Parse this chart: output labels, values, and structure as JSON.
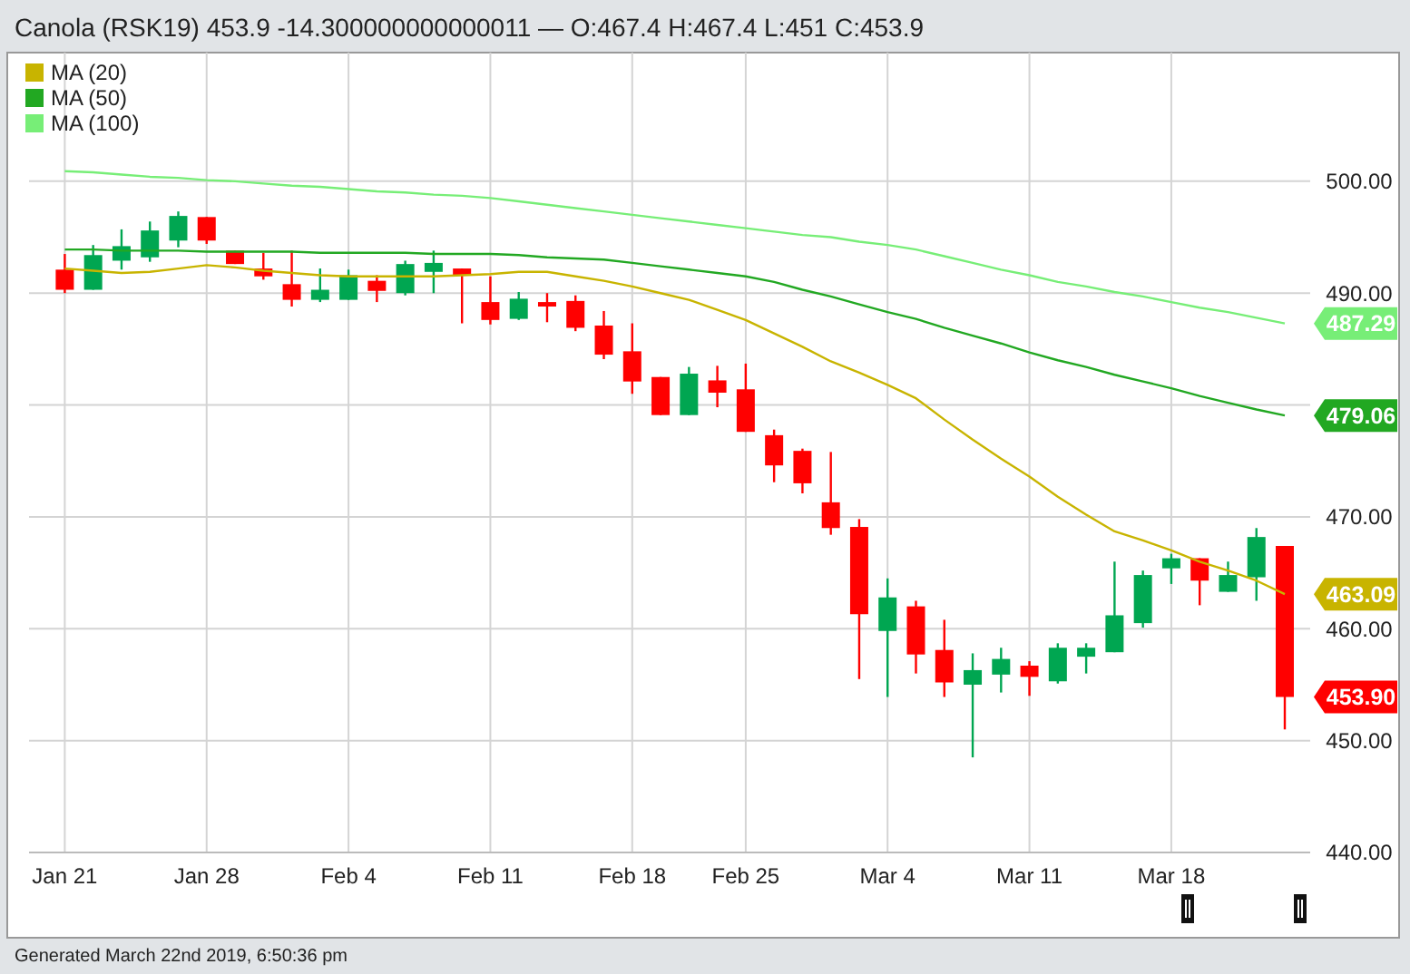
{
  "chart_data": {
    "type": "candlestick",
    "title": "Canola (RSK19) 453.9 -14.300000000000011 — O:467.4 H:467.4 L:451 C:453.9",
    "annotations": [
      "Generated March 22nd 2019, 6:50:36 pm"
    ],
    "categories": [
      "Jan 21",
      null,
      null,
      null,
      null,
      "Jan 28",
      null,
      null,
      null,
      null,
      "Feb 4",
      null,
      null,
      null,
      null,
      "Feb 11",
      null,
      null,
      null,
      null,
      "Feb 18",
      null,
      null,
      null,
      "Feb 25",
      null,
      null,
      null,
      null,
      "Mar 4",
      null,
      null,
      null,
      null,
      "Mar 11",
      null,
      null,
      null,
      null,
      "Mar 18",
      null,
      null,
      null,
      null
    ],
    "ylim": [
      440,
      511.5
    ],
    "yticks": [
      {
        "value": 440,
        "label": "440.00"
      },
      {
        "value": 450,
        "label": "450.00"
      },
      {
        "value": 460,
        "label": "460.00"
      },
      {
        "value": 470,
        "label": "470.00"
      },
      {
        "value": 480,
        "label": null
      },
      {
        "value": 490,
        "label": "490.00"
      },
      {
        "value": 500,
        "label": "500.00"
      }
    ],
    "grid": true,
    "legend": "top left",
    "series": [
      {
        "ohlc": [
          [
            492.1,
            493.5,
            490.0,
            490.3
          ],
          [
            490.3,
            494.3,
            490.3,
            493.4
          ],
          [
            492.9,
            495.7,
            492.1,
            494.2
          ],
          [
            493.2,
            496.4,
            492.8,
            495.6
          ],
          [
            494.7,
            497.3,
            494.1,
            496.9
          ],
          [
            496.8,
            496.8,
            494.4,
            494.7
          ],
          [
            493.8,
            493.8,
            492.6,
            492.6
          ],
          [
            492.2,
            493.6,
            491.2,
            491.5
          ],
          [
            490.8,
            493.8,
            488.8,
            489.4
          ],
          [
            489.4,
            492.2,
            489.2,
            490.3
          ],
          [
            489.4,
            492.1,
            489.4,
            491.6
          ],
          [
            491.1,
            491.6,
            489.2,
            490.2
          ],
          [
            490.0,
            492.9,
            489.8,
            492.6
          ],
          [
            491.9,
            493.8,
            490.0,
            492.7
          ],
          [
            492.2,
            492.2,
            487.3,
            491.6
          ],
          [
            489.2,
            491.5,
            487.2,
            487.6
          ],
          [
            487.7,
            490.1,
            487.6,
            489.5
          ],
          [
            489.2,
            490.0,
            487.4,
            488.8
          ],
          [
            489.3,
            489.8,
            486.6,
            486.9
          ],
          [
            487.1,
            488.4,
            484.1,
            484.5
          ],
          [
            484.8,
            487.3,
            481.0,
            482.1
          ],
          [
            482.5,
            482.5,
            479.1,
            479.1
          ],
          [
            479.1,
            483.4,
            479.1,
            482.8
          ],
          [
            482.2,
            483.5,
            479.8,
            481.1
          ],
          [
            481.4,
            483.7,
            477.6,
            477.6
          ],
          [
            477.3,
            477.8,
            473.1,
            474.6
          ],
          [
            475.9,
            476.1,
            472.1,
            473.0
          ],
          [
            471.3,
            475.8,
            468.4,
            469.0
          ],
          [
            469.1,
            469.8,
            455.5,
            461.3
          ],
          [
            459.8,
            464.5,
            453.9,
            462.8
          ],
          [
            462.0,
            462.5,
            456.0,
            457.7
          ],
          [
            458.1,
            460.8,
            453.9,
            455.2
          ],
          [
            455.0,
            457.8,
            448.5,
            456.3
          ],
          [
            455.9,
            458.3,
            454.3,
            457.3
          ],
          [
            456.7,
            457.1,
            454.0,
            455.7
          ],
          [
            455.3,
            458.7,
            455.1,
            458.3
          ],
          [
            457.5,
            458.7,
            456.0,
            458.3
          ],
          [
            457.9,
            466.0,
            457.9,
            461.2
          ],
          [
            460.5,
            465.2,
            460.1,
            464.8
          ],
          [
            465.4,
            466.7,
            464.0,
            466.3
          ],
          [
            466.3,
            466.3,
            462.1,
            464.3
          ],
          [
            463.3,
            466.0,
            463.3,
            464.8
          ],
          [
            464.6,
            469.0,
            462.5,
            468.2
          ],
          [
            467.4,
            467.4,
            451.0,
            453.9
          ]
        ],
        "colors": [
          "#ff0000",
          "#00a651",
          "#00a651",
          "#00a651",
          "#00a651",
          "#ff0000",
          "#ff0000",
          "#ff0000",
          "#ff0000",
          "#00a651",
          "#00a651",
          "#ff0000",
          "#00a651",
          "#00a651",
          "#ff0000",
          "#ff0000",
          "#00a651",
          "#ff0000",
          "#ff0000",
          "#ff0000",
          "#ff0000",
          "#ff0000",
          "#00a651",
          "#ff0000",
          "#ff0000",
          "#ff0000",
          "#ff0000",
          "#ff0000",
          "#ff0000",
          "#00a651",
          "#ff0000",
          "#ff0000",
          "#00a651",
          "#00a651",
          "#ff0000",
          "#00a651",
          "#00a651",
          "#00a651",
          "#00a651",
          "#00a651",
          "#ff0000",
          "#00a651",
          "#00a651",
          "#ff0000"
        ],
        "value_labels": [
          null,
          null,
          null,
          null,
          null,
          null,
          null,
          null,
          null,
          null,
          null,
          null,
          null,
          null,
          null,
          null,
          null,
          null,
          null,
          null,
          null,
          null,
          null,
          null,
          null,
          null,
          null,
          null,
          null,
          null,
          null,
          null,
          null,
          null,
          null,
          null,
          null,
          null,
          null,
          null,
          null,
          null,
          null,
          "453.90"
        ]
      },
      {
        "type": "line",
        "name": "MA (20)",
        "color": "#c8b400",
        "values": [
          492.2,
          492.0,
          491.8,
          491.9,
          492.2,
          492.5,
          492.3,
          492.0,
          491.8,
          491.6,
          491.5,
          491.5,
          491.5,
          491.5,
          491.6,
          491.7,
          491.9,
          491.9,
          491.5,
          491.1,
          490.6,
          490.0,
          489.4,
          488.5,
          487.6,
          486.4,
          485.2,
          483.9,
          482.9,
          481.8,
          480.6,
          478.7,
          476.9,
          475.2,
          473.6,
          471.8,
          470.2,
          468.7,
          467.9,
          467.0,
          466.0,
          465.2,
          464.3,
          463.09
        ],
        "value_labels": [
          null,
          null,
          null,
          null,
          null,
          null,
          null,
          null,
          null,
          null,
          null,
          null,
          null,
          null,
          null,
          null,
          null,
          null,
          null,
          null,
          null,
          null,
          null,
          null,
          null,
          null,
          null,
          null,
          null,
          null,
          null,
          null,
          null,
          null,
          null,
          null,
          null,
          null,
          null,
          null,
          null,
          null,
          null,
          "463.09"
        ]
      },
      {
        "type": "line",
        "name": "MA (50)",
        "color": "#22a822",
        "values": [
          493.9,
          493.9,
          493.8,
          493.8,
          493.8,
          493.7,
          493.7,
          493.7,
          493.7,
          493.6,
          493.6,
          493.6,
          493.6,
          493.5,
          493.5,
          493.5,
          493.4,
          493.2,
          493.1,
          493.0,
          492.7,
          492.4,
          492.1,
          491.8,
          491.5,
          491.0,
          490.3,
          489.7,
          489.0,
          488.3,
          487.7,
          486.9,
          486.2,
          485.5,
          484.7,
          484.0,
          483.4,
          482.7,
          482.1,
          481.5,
          480.8,
          480.2,
          479.6,
          479.06
        ],
        "value_labels": [
          null,
          null,
          null,
          null,
          null,
          null,
          null,
          null,
          null,
          null,
          null,
          null,
          null,
          null,
          null,
          null,
          null,
          null,
          null,
          null,
          null,
          null,
          null,
          null,
          null,
          null,
          null,
          null,
          null,
          null,
          null,
          null,
          null,
          null,
          null,
          null,
          null,
          null,
          null,
          null,
          null,
          null,
          null,
          "479.06"
        ]
      },
      {
        "type": "line",
        "name": "MA (100)",
        "color": "#77ee77",
        "values": [
          500.9,
          500.8,
          500.6,
          500.4,
          500.3,
          500.1,
          500.0,
          499.8,
          499.6,
          499.5,
          499.3,
          499.1,
          499.0,
          498.8,
          498.7,
          498.5,
          498.2,
          497.9,
          497.6,
          497.3,
          497.0,
          496.7,
          496.4,
          496.1,
          495.8,
          495.5,
          495.2,
          495.0,
          494.6,
          494.3,
          493.9,
          493.3,
          492.7,
          492.1,
          491.6,
          491.0,
          490.6,
          490.1,
          489.7,
          489.2,
          488.7,
          488.3,
          487.8,
          487.29
        ],
        "value_labels": [
          null,
          null,
          null,
          null,
          null,
          null,
          null,
          null,
          null,
          null,
          null,
          null,
          null,
          null,
          null,
          null,
          null,
          null,
          null,
          null,
          null,
          null,
          null,
          null,
          null,
          null,
          null,
          null,
          null,
          null,
          null,
          null,
          null,
          null,
          null,
          null,
          null,
          null,
          null,
          null,
          null,
          null,
          null,
          "487.29"
        ]
      }
    ]
  }
}
